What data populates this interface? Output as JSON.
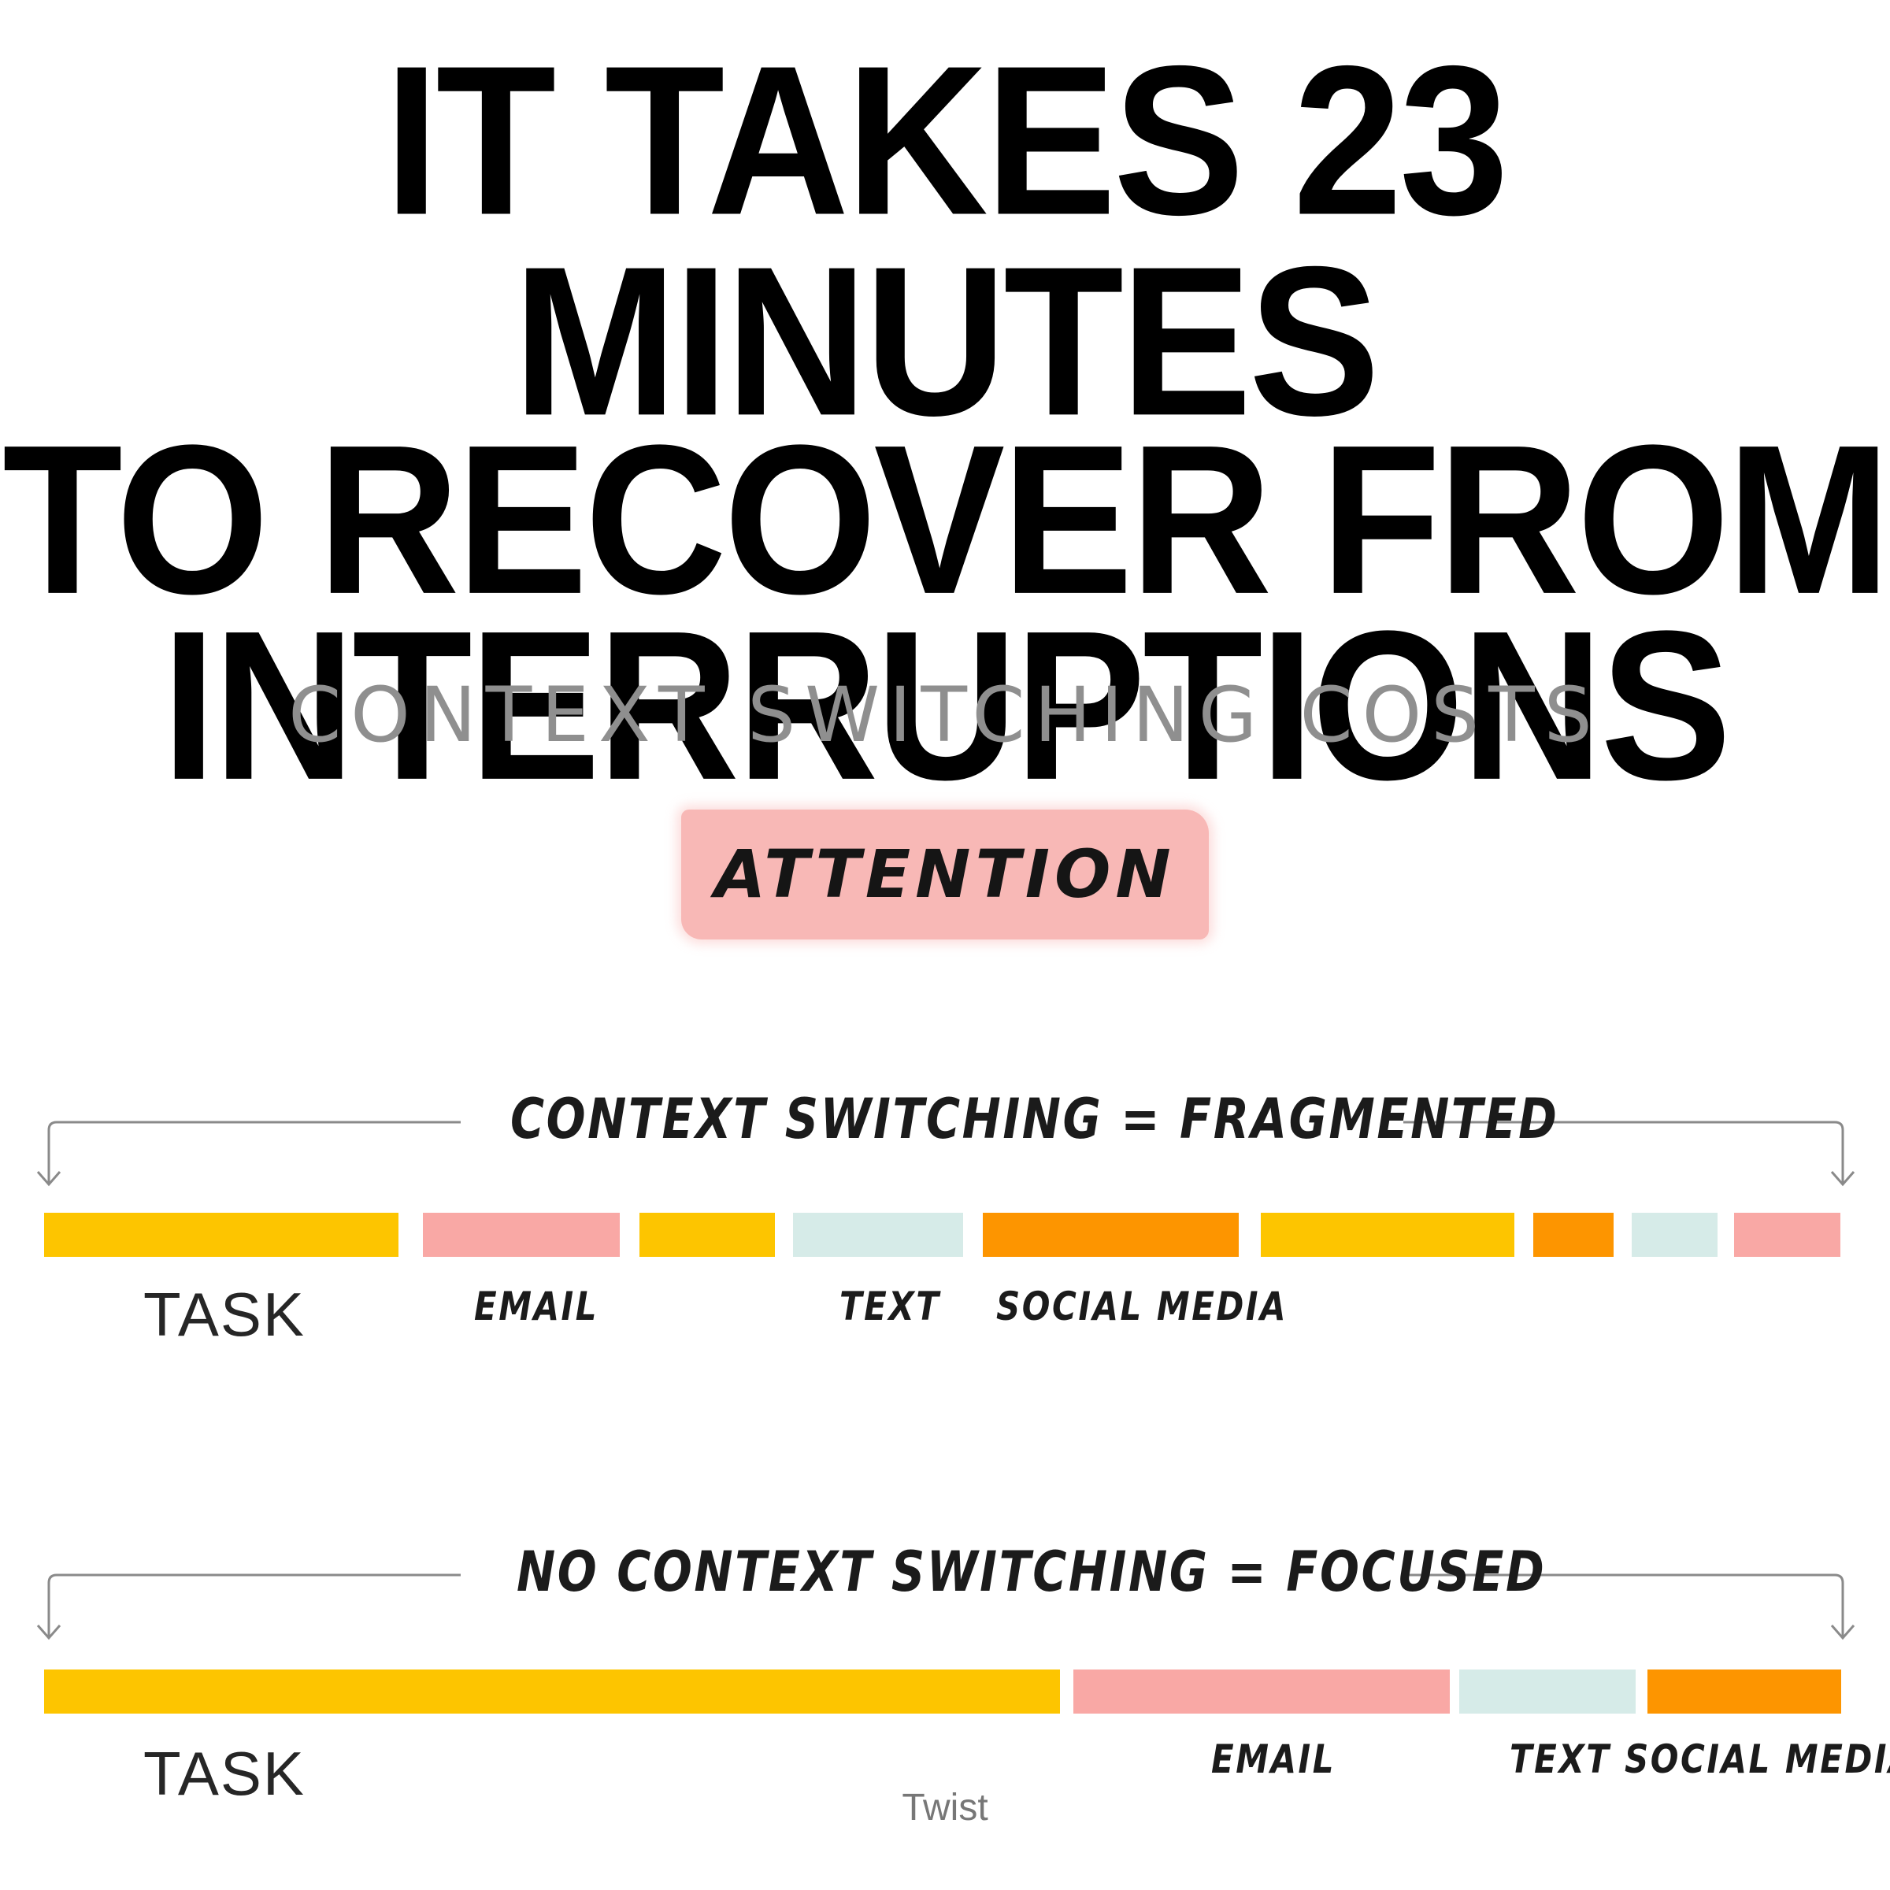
{
  "headline": {
    "lines": [
      "IT TAKES 23 MINUTES",
      "TO RECOVER FROM",
      "INTERRUPTIONS"
    ]
  },
  "subtitle": "CONTEXT SWITCHING COSTS",
  "badge": {
    "label": "ATTENTION",
    "color": "#f8b8b6"
  },
  "colors": {
    "task": "#fdc500",
    "email": "#f9a8a5",
    "text": "#d6ebe8",
    "social_media": "#fd9500"
  },
  "fragmented": {
    "label": "CONTEXT SWITCHING = FRAGMENTED",
    "task_label": "TASK",
    "segment_labels": [
      "EMAIL",
      "TEXT",
      "SOCIAL MEDIA"
    ],
    "sequence": [
      "task",
      "email",
      "task",
      "text",
      "social_media",
      "task",
      "social_media",
      "text",
      "email"
    ]
  },
  "focused": {
    "label": "NO CONTEXT SWITCHING = FOCUSED",
    "task_label": "TASK",
    "segment_labels": [
      "EMAIL",
      "TEXT",
      "SOCIAL MEDIA"
    ],
    "sequence": [
      "task",
      "email",
      "text",
      "social_media"
    ]
  },
  "brand": "Twist"
}
